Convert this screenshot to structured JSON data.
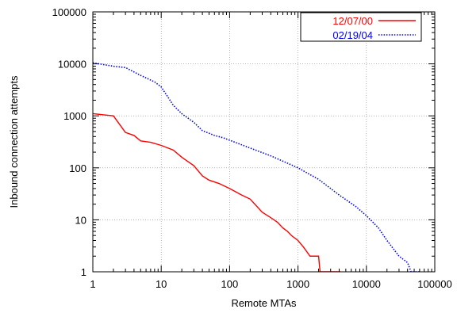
{
  "chart_data": {
    "type": "line",
    "xlabel": "Remote MTAs",
    "ylabel": "Inbound connection attempts",
    "xscale": "log",
    "yscale": "log",
    "xlim": [
      1,
      100000
    ],
    "ylim": [
      1,
      100000
    ],
    "x_ticks": [
      1,
      10,
      100,
      1000,
      10000,
      100000
    ],
    "x_tick_labels": [
      "1",
      "10",
      "100",
      "1000",
      "10000",
      "100000"
    ],
    "y_ticks": [
      1,
      10,
      100,
      1000,
      10000,
      100000
    ],
    "y_tick_labels": [
      "1",
      "10",
      "100",
      "1000",
      "10000",
      "100000"
    ],
    "grid": true,
    "legend_position": "top-right",
    "series": [
      {
        "name": "12/07/00",
        "color": "#ff0000",
        "style": "solid",
        "points": [
          [
            1,
            1100
          ],
          [
            2,
            1000
          ],
          [
            3,
            480
          ],
          [
            4,
            420
          ],
          [
            5,
            330
          ],
          [
            7,
            310
          ],
          [
            10,
            270
          ],
          [
            15,
            220
          ],
          [
            20,
            160
          ],
          [
            25,
            130
          ],
          [
            30,
            110
          ],
          [
            40,
            70
          ],
          [
            50,
            58
          ],
          [
            70,
            50
          ],
          [
            100,
            40
          ],
          [
            150,
            30
          ],
          [
            200,
            25
          ],
          [
            300,
            14
          ],
          [
            400,
            11
          ],
          [
            500,
            9
          ],
          [
            600,
            7
          ],
          [
            700,
            6
          ],
          [
            800,
            5
          ],
          [
            1000,
            4
          ],
          [
            1200,
            3
          ],
          [
            1500,
            2
          ],
          [
            2000,
            2
          ],
          [
            2100,
            1
          ],
          [
            4200,
            1
          ]
        ]
      },
      {
        "name": "02/19/04",
        "color": "#0000ff",
        "style": "dotted",
        "points": [
          [
            1,
            10500
          ],
          [
            2,
            9000
          ],
          [
            3,
            8500
          ],
          [
            5,
            6000
          ],
          [
            8,
            4500
          ],
          [
            10,
            3600
          ],
          [
            15,
            1600
          ],
          [
            20,
            1100
          ],
          [
            30,
            750
          ],
          [
            40,
            520
          ],
          [
            60,
            420
          ],
          [
            80,
            380
          ],
          [
            100,
            340
          ],
          [
            200,
            240
          ],
          [
            400,
            170
          ],
          [
            1000,
            100
          ],
          [
            2000,
            60
          ],
          [
            4000,
            30
          ],
          [
            7000,
            18
          ],
          [
            10000,
            12
          ],
          [
            15000,
            7
          ],
          [
            20000,
            4
          ],
          [
            30000,
            2
          ],
          [
            40000,
            1.5
          ],
          [
            45000,
            1
          ],
          [
            60000,
            1
          ]
        ]
      }
    ]
  }
}
